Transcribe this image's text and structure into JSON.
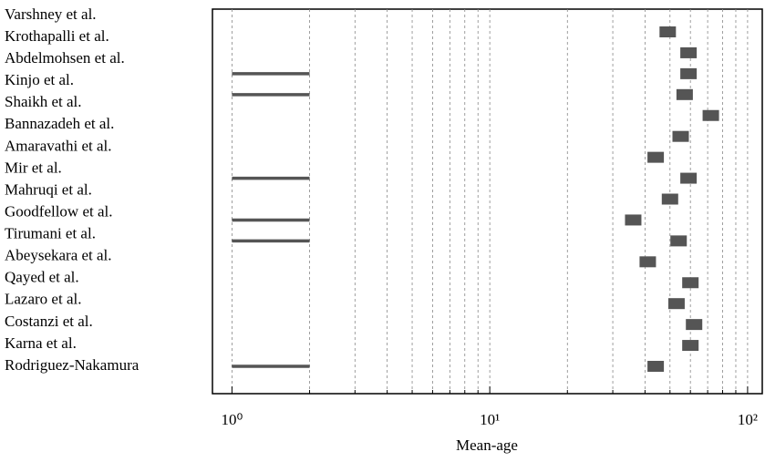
{
  "chart_data": {
    "type": "range-dot",
    "xlabel": "Mean-age",
    "categories": [
      "Varshney et al.",
      "Krothapalli et al.",
      "Abdelmohsen et al.",
      "Kinjo et al.",
      "Shaikh et al.",
      "Bannazadeh et al.",
      "Amaravathi et al.",
      "Mir et al.",
      "Mahruqi et al.",
      "Goodfellow et al.",
      "Tirumani et al.",
      "Abeysekara et al.",
      "Qayed et al.",
      "Lazaro et al.",
      "Costanzi et al.",
      "Karna et al.",
      "Rodriguez-Nakamura"
    ],
    "values": [
      49,
      59,
      59,
      57,
      72,
      55,
      44,
      59,
      50,
      36,
      54,
      41,
      60,
      53,
      62,
      60,
      44
    ],
    "low": [
      null,
      null,
      1,
      1,
      null,
      null,
      null,
      1,
      null,
      1,
      1,
      null,
      null,
      null,
      null,
      null,
      1
    ],
    "high": [
      null,
      null,
      2,
      2,
      null,
      null,
      null,
      2,
      null,
      2,
      2,
      null,
      null,
      null,
      null,
      null,
      2
    ],
    "color": "#555555",
    "xscale": "log",
    "xlim": [
      0.84,
      114
    ],
    "xticks": [
      {
        "value": 1,
        "label": "10⁰"
      },
      {
        "value": 10,
        "label": "10¹"
      },
      {
        "value": 100,
        "label": "10²"
      }
    ],
    "xminorticks": [
      2,
      3,
      4,
      5,
      6,
      7,
      8,
      9,
      20,
      30,
      40,
      50,
      60,
      70,
      80,
      90
    ],
    "grid": true
  }
}
